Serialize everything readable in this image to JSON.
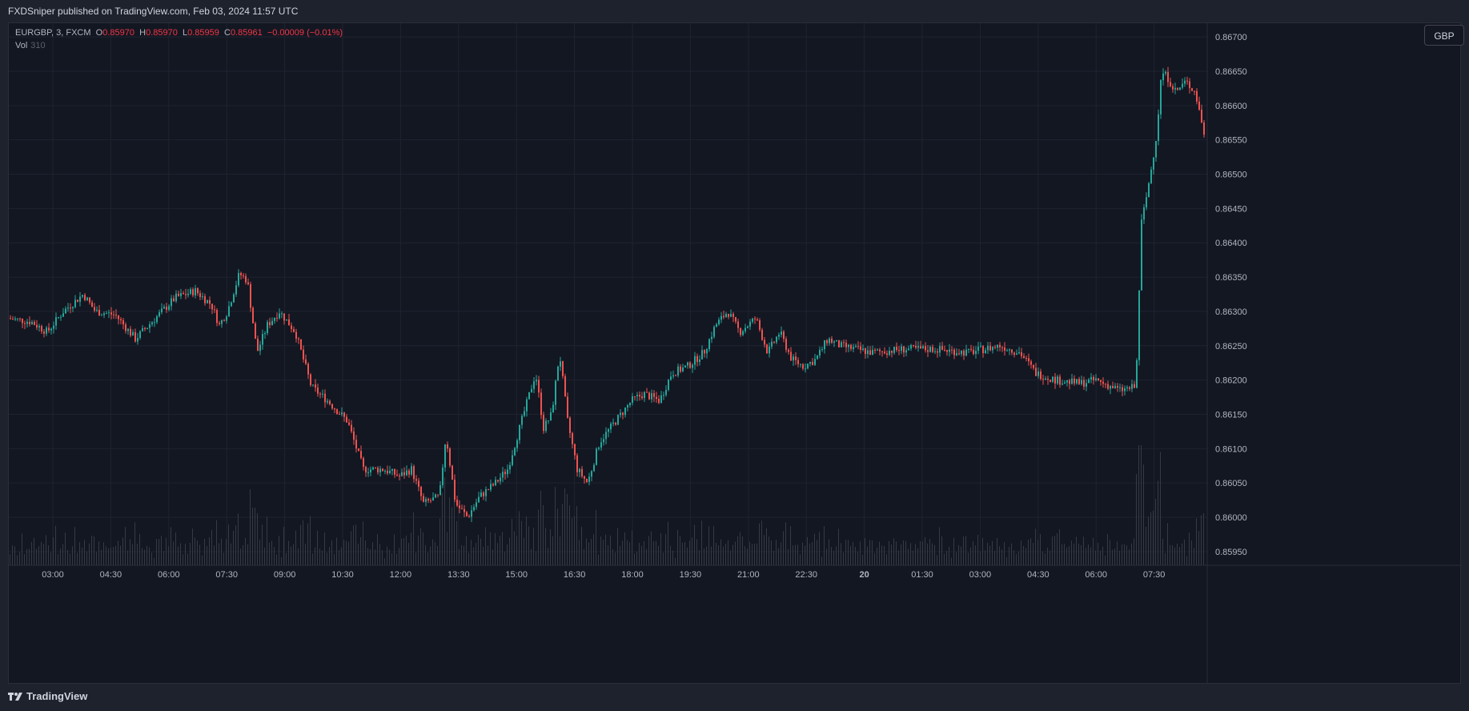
{
  "header": {
    "published_text": "FXDSniper published on TradingView.com, Feb 03, 2024 11:57 UTC"
  },
  "legend": {
    "symbol": "EURGBP, 3, FXCM",
    "o_label": "O",
    "o_value": "0.85970",
    "h_label": "H",
    "h_value": "0.85970",
    "l_label": "L",
    "l_value": "0.85959",
    "c_label": "C",
    "c_value": "0.85961",
    "change": "−0.00009 (−0.01%)",
    "vol_label": "Vol",
    "vol_value": "310"
  },
  "currency_button": {
    "label": "GBP"
  },
  "footer": {
    "brand": "TradingView"
  },
  "colors": {
    "up": "#26a69a",
    "down": "#ef5350",
    "background": "#131722",
    "grid": "#1f2330",
    "text": "#b2b5be"
  },
  "chart_data": {
    "type": "candlestick",
    "y_axis_side": "right",
    "ylim": [
      0.8593,
      0.8672
    ],
    "y_ticks": [
      "0.86700",
      "0.86650",
      "0.86600",
      "0.86550",
      "0.86500",
      "0.86450",
      "0.86400",
      "0.86350",
      "0.86300",
      "0.86250",
      "0.86200",
      "0.86150",
      "0.86100",
      "0.86050",
      "0.86000",
      "0.85950"
    ],
    "x_ticks": [
      "03:00",
      "04:30",
      "06:00",
      "07:30",
      "09:00",
      "10:30",
      "12:00",
      "13:30",
      "15:00",
      "16:30",
      "18:00",
      "19:30",
      "21:00",
      "22:30",
      "20",
      "01:30",
      "03:00",
      "04:30",
      "06:00",
      "07:30"
    ],
    "volume_panel": true,
    "grid": true,
    "price_path": [
      [
        0,
        0.8629
      ],
      [
        30,
        0.86285
      ],
      [
        50,
        0.8627
      ],
      [
        70,
        0.863
      ],
      [
        95,
        0.86325
      ],
      [
        110,
        0.863
      ],
      [
        135,
        0.86295
      ],
      [
        160,
        0.8626
      ],
      [
        185,
        0.8629
      ],
      [
        210,
        0.8632
      ],
      [
        235,
        0.8633
      ],
      [
        255,
        0.8631
      ],
      [
        265,
        0.8628
      ],
      [
        275,
        0.863
      ],
      [
        290,
        0.86355
      ],
      [
        300,
        0.86345
      ],
      [
        312,
        0.8624
      ],
      [
        325,
        0.8628
      ],
      [
        340,
        0.863
      ],
      [
        360,
        0.8627
      ],
      [
        380,
        0.8619
      ],
      [
        400,
        0.8617
      ],
      [
        425,
        0.8614
      ],
      [
        445,
        0.8607
      ],
      [
        470,
        0.8607
      ],
      [
        490,
        0.8606
      ],
      [
        505,
        0.8607
      ],
      [
        520,
        0.8602
      ],
      [
        540,
        0.8603
      ],
      [
        548,
        0.8612
      ],
      [
        560,
        0.8602
      ],
      [
        575,
        0.86
      ],
      [
        590,
        0.8603
      ],
      [
        610,
        0.8605
      ],
      [
        625,
        0.8607
      ],
      [
        640,
        0.8613
      ],
      [
        660,
        0.8621
      ],
      [
        670,
        0.8613
      ],
      [
        680,
        0.8615
      ],
      [
        690,
        0.8624
      ],
      [
        700,
        0.8614
      ],
      [
        712,
        0.8607
      ],
      [
        725,
        0.8605
      ],
      [
        740,
        0.8611
      ],
      [
        760,
        0.8614
      ],
      [
        780,
        0.8617
      ],
      [
        795,
        0.8618
      ],
      [
        815,
        0.8617
      ],
      [
        830,
        0.8621
      ],
      [
        850,
        0.8622
      ],
      [
        870,
        0.8624
      ],
      [
        885,
        0.8628
      ],
      [
        900,
        0.863
      ],
      [
        915,
        0.8627
      ],
      [
        935,
        0.8629
      ],
      [
        950,
        0.8624
      ],
      [
        965,
        0.8627
      ],
      [
        980,
        0.8623
      ],
      [
        995,
        0.8622
      ],
      [
        1010,
        0.8623
      ],
      [
        1025,
        0.8626
      ],
      [
        1040,
        0.8625
      ],
      [
        1080,
        0.8624
      ],
      [
        1120,
        0.86245
      ],
      [
        1160,
        0.86245
      ],
      [
        1200,
        0.8624
      ],
      [
        1240,
        0.8625
      ],
      [
        1265,
        0.8624
      ],
      [
        1285,
        0.8621
      ],
      [
        1310,
        0.862
      ],
      [
        1340,
        0.86195
      ],
      [
        1360,
        0.862
      ],
      [
        1390,
        0.86185
      ],
      [
        1410,
        0.8619
      ],
      [
        1413,
        0.863
      ],
      [
        1417,
        0.8643
      ],
      [
        1422,
        0.8646
      ],
      [
        1428,
        0.865
      ],
      [
        1436,
        0.8656
      ],
      [
        1442,
        0.8665
      ],
      [
        1450,
        0.8664
      ],
      [
        1460,
        0.8662
      ],
      [
        1472,
        0.86635
      ],
      [
        1484,
        0.8662
      ],
      [
        1495,
        0.8656
      ],
      [
        1505,
        0.86561
      ]
    ]
  }
}
